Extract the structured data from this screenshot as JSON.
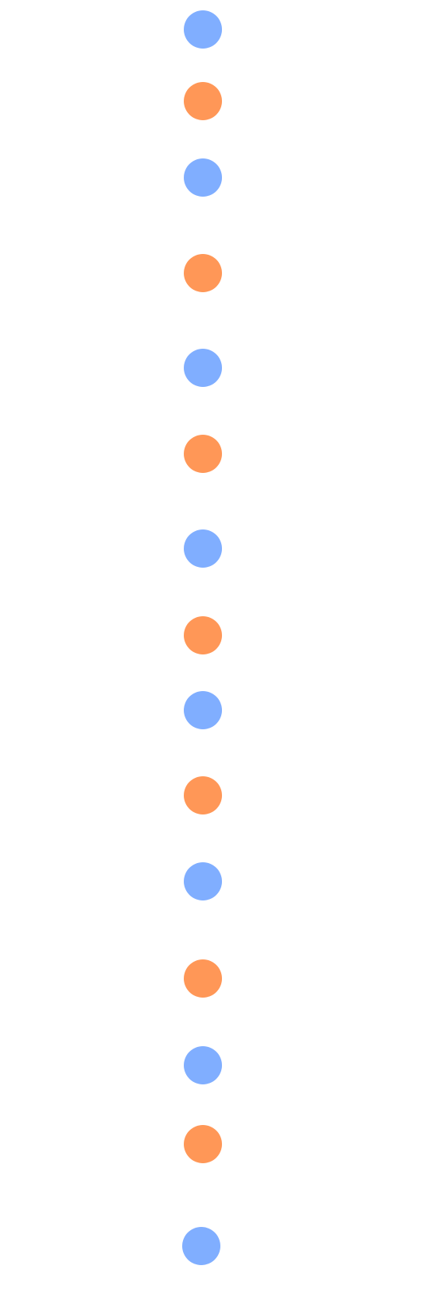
{
  "colors": {
    "background": "#ffffff",
    "blue": "#80aeff",
    "orange": "#ff9757"
  },
  "dots": [
    {
      "color": "blue"
    },
    {
      "color": "orange"
    },
    {
      "color": "blue"
    },
    {
      "color": "orange"
    },
    {
      "color": "blue"
    },
    {
      "color": "orange"
    },
    {
      "color": "blue"
    },
    {
      "color": "orange"
    },
    {
      "color": "blue"
    },
    {
      "color": "orange"
    },
    {
      "color": "blue"
    },
    {
      "color": "orange"
    },
    {
      "color": "blue"
    },
    {
      "color": "orange"
    },
    {
      "color": "blue"
    }
  ]
}
